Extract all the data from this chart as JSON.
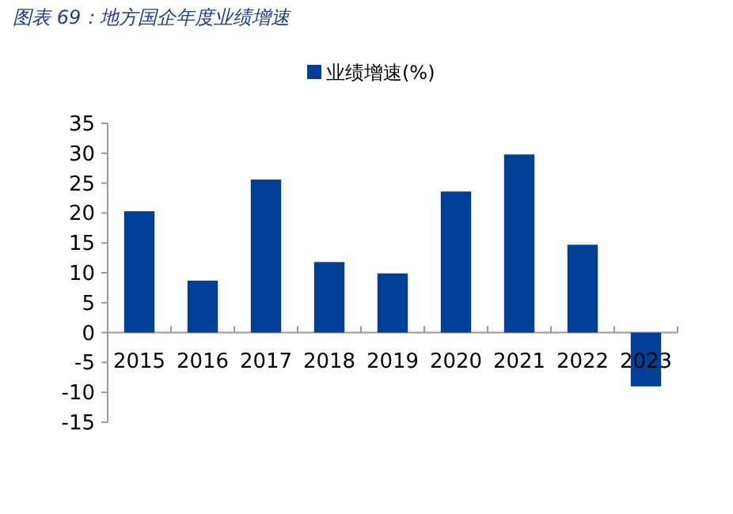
{
  "chart_data": {
    "type": "bar",
    "title": "图表 69：地方国企年度业绩增速",
    "categories": [
      "2015",
      "2016",
      "2017",
      "2018",
      "2019",
      "2020",
      "2021",
      "2022",
      "2023"
    ],
    "series": [
      {
        "name": "业绩增速(%)",
        "color": "#003f98",
        "values": [
          20.3,
          8.7,
          25.6,
          11.8,
          9.9,
          23.6,
          29.8,
          14.7,
          -9.0
        ]
      }
    ],
    "ylim": [
      -15,
      35
    ],
    "yticks": [
      -15,
      -10,
      -5,
      0,
      5,
      10,
      15,
      20,
      25,
      30,
      35
    ],
    "grid": false,
    "legend": "top"
  }
}
